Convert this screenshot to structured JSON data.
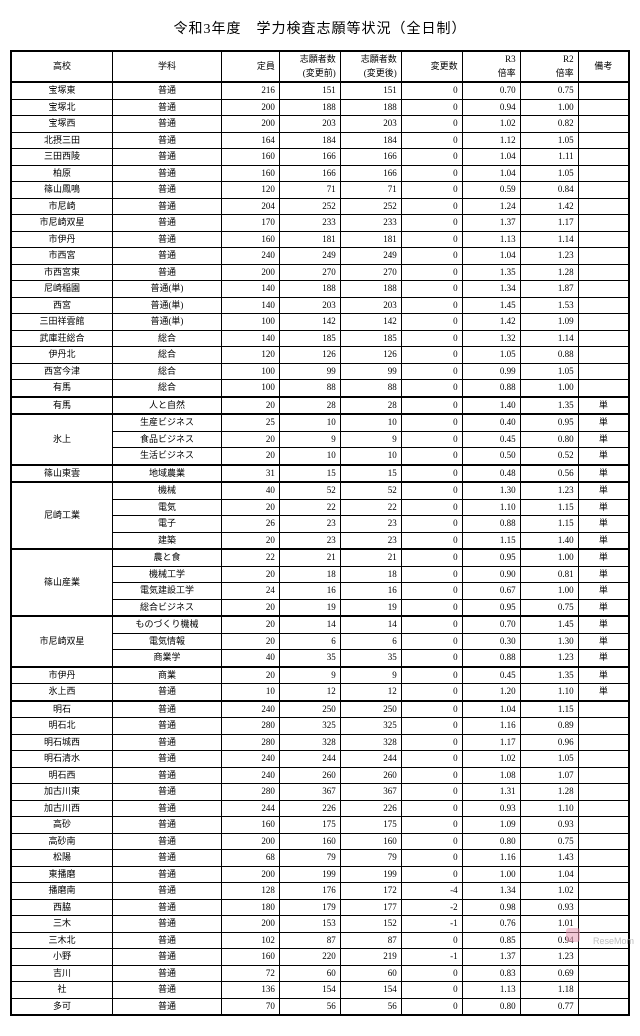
{
  "title": "令和3年度　学力検査志願等状況（全日制）",
  "columns": [
    "高校",
    "学科",
    "定員",
    "志願者数\n(変更前)",
    "志願者数\n(変更後)",
    "変更数",
    "R3\n倍率",
    "R2\n倍率",
    "備考"
  ],
  "groups": [
    {
      "rows": [
        [
          "宝塚東",
          "普通",
          216,
          151,
          151,
          0,
          "0.70",
          "0.75",
          ""
        ],
        [
          "宝塚北",
          "普通",
          200,
          188,
          188,
          0,
          "0.94",
          "1.00",
          ""
        ],
        [
          "宝塚西",
          "普通",
          200,
          203,
          203,
          0,
          "1.02",
          "0.82",
          ""
        ],
        [
          "北摂三田",
          "普通",
          164,
          184,
          184,
          0,
          "1.12",
          "1.05",
          ""
        ],
        [
          "三田西陵",
          "普通",
          160,
          166,
          166,
          0,
          "1.04",
          "1.11",
          ""
        ],
        [
          "柏原",
          "普通",
          160,
          166,
          166,
          0,
          "1.04",
          "1.05",
          ""
        ],
        [
          "篠山鳳鳴",
          "普通",
          120,
          71,
          71,
          0,
          "0.59",
          "0.84",
          ""
        ],
        [
          "市尼崎",
          "普通",
          204,
          252,
          252,
          0,
          "1.24",
          "1.42",
          ""
        ],
        [
          "市尼崎双星",
          "普通",
          170,
          233,
          233,
          0,
          "1.37",
          "1.17",
          ""
        ],
        [
          "市伊丹",
          "普通",
          160,
          181,
          181,
          0,
          "1.13",
          "1.14",
          ""
        ],
        [
          "市西宮",
          "普通",
          240,
          249,
          249,
          0,
          "1.04",
          "1.23",
          ""
        ],
        [
          "市西宮東",
          "普通",
          200,
          270,
          270,
          0,
          "1.35",
          "1.28",
          ""
        ],
        [
          "尼崎稲園",
          "普通(単)",
          140,
          188,
          188,
          0,
          "1.34",
          "1.87",
          ""
        ],
        [
          "西宮",
          "普通(単)",
          140,
          203,
          203,
          0,
          "1.45",
          "1.53",
          ""
        ],
        [
          "三田祥雲館",
          "普通(単)",
          100,
          142,
          142,
          0,
          "1.42",
          "1.09",
          ""
        ],
        [
          "武庫荘総合",
          "総合",
          140,
          185,
          185,
          0,
          "1.32",
          "1.14",
          ""
        ],
        [
          "伊丹北",
          "総合",
          120,
          126,
          126,
          0,
          "1.05",
          "0.88",
          ""
        ],
        [
          "西宮今津",
          "総合",
          100,
          99,
          99,
          0,
          "0.99",
          "1.05",
          ""
        ],
        [
          "有馬",
          "総合",
          100,
          88,
          88,
          0,
          "0.88",
          "1.00",
          ""
        ]
      ]
    },
    {
      "rows": [
        [
          "有馬",
          "人と自然",
          20,
          28,
          28,
          0,
          "1.40",
          "1.35",
          "単"
        ]
      ]
    },
    {
      "school": "氷上",
      "span": 3,
      "rows": [
        [
          "",
          "生産ビジネス",
          25,
          10,
          10,
          0,
          "0.40",
          "0.95",
          "単"
        ],
        [
          "",
          "食品ビジネス",
          20,
          9,
          9,
          0,
          "0.45",
          "0.80",
          "単"
        ],
        [
          "",
          "生活ビジネス",
          20,
          10,
          10,
          0,
          "0.50",
          "0.52",
          "単"
        ]
      ]
    },
    {
      "rows": [
        [
          "篠山東雲",
          "地域農業",
          31,
          15,
          15,
          0,
          "0.48",
          "0.56",
          "単"
        ]
      ]
    },
    {
      "school": "尼崎工業",
      "span": 4,
      "rows": [
        [
          "",
          "機械",
          40,
          52,
          52,
          0,
          "1.30",
          "1.23",
          "単"
        ],
        [
          "",
          "電気",
          20,
          22,
          22,
          0,
          "1.10",
          "1.15",
          "単"
        ],
        [
          "",
          "電子",
          26,
          23,
          23,
          0,
          "0.88",
          "1.15",
          "単"
        ],
        [
          "",
          "建築",
          20,
          23,
          23,
          0,
          "1.15",
          "1.40",
          "単"
        ]
      ]
    },
    {
      "school": "篠山産業",
      "span": 4,
      "rows": [
        [
          "",
          "農と食",
          22,
          21,
          21,
          0,
          "0.95",
          "1.00",
          "単"
        ],
        [
          "",
          "機械工学",
          20,
          18,
          18,
          0,
          "0.90",
          "0.81",
          "単"
        ],
        [
          "",
          "電気建設工学",
          24,
          16,
          16,
          0,
          "0.67",
          "1.00",
          "単"
        ],
        [
          "",
          "総合ビジネス",
          20,
          19,
          19,
          0,
          "0.95",
          "0.75",
          "単"
        ]
      ]
    },
    {
      "school": "市尼崎双星",
      "span": 3,
      "rows": [
        [
          "",
          "ものづくり機械",
          20,
          14,
          14,
          0,
          "0.70",
          "1.45",
          "単"
        ],
        [
          "",
          "電気情報",
          20,
          6,
          6,
          0,
          "0.30",
          "1.30",
          "単"
        ],
        [
          "",
          "商業学",
          40,
          35,
          35,
          0,
          "0.88",
          "1.23",
          "単"
        ]
      ]
    },
    {
      "rows": [
        [
          "市伊丹",
          "商業",
          20,
          9,
          9,
          0,
          "0.45",
          "1.35",
          "単"
        ],
        [
          "氷上西",
          "普通",
          10,
          12,
          12,
          0,
          "1.20",
          "1.10",
          "単"
        ]
      ]
    },
    {
      "rows": [
        [
          "明石",
          "普通",
          240,
          250,
          250,
          0,
          "1.04",
          "1.15",
          ""
        ],
        [
          "明石北",
          "普通",
          280,
          325,
          325,
          0,
          "1.16",
          "0.89",
          ""
        ],
        [
          "明石城西",
          "普通",
          280,
          328,
          328,
          0,
          "1.17",
          "0.96",
          ""
        ],
        [
          "明石清水",
          "普通",
          240,
          244,
          244,
          0,
          "1.02",
          "1.05",
          ""
        ],
        [
          "明石西",
          "普通",
          240,
          260,
          260,
          0,
          "1.08",
          "1.07",
          ""
        ],
        [
          "加古川東",
          "普通",
          280,
          367,
          367,
          0,
          "1.31",
          "1.28",
          ""
        ],
        [
          "加古川西",
          "普通",
          244,
          226,
          226,
          0,
          "0.93",
          "1.10",
          ""
        ],
        [
          "高砂",
          "普通",
          160,
          175,
          175,
          0,
          "1.09",
          "0.93",
          ""
        ],
        [
          "高砂南",
          "普通",
          200,
          160,
          160,
          0,
          "0.80",
          "0.75",
          ""
        ],
        [
          "松陽",
          "普通",
          68,
          79,
          79,
          0,
          "1.16",
          "1.43",
          ""
        ],
        [
          "東播磨",
          "普通",
          200,
          199,
          199,
          0,
          "1.00",
          "1.04",
          ""
        ],
        [
          "播磨南",
          "普通",
          128,
          176,
          172,
          -4,
          "1.34",
          "1.02",
          ""
        ],
        [
          "西脇",
          "普通",
          180,
          179,
          177,
          -2,
          "0.98",
          "0.93",
          ""
        ],
        [
          "三木",
          "普通",
          200,
          153,
          152,
          -1,
          "0.76",
          "1.01",
          ""
        ],
        [
          "三木北",
          "普通",
          102,
          87,
          87,
          0,
          "0.85",
          "0.94",
          ""
        ],
        [
          "小野",
          "普通",
          160,
          220,
          219,
          -1,
          "1.37",
          "1.23",
          ""
        ],
        [
          "吉川",
          "普通",
          72,
          60,
          60,
          0,
          "0.83",
          "0.69",
          ""
        ],
        [
          "社",
          "普通",
          136,
          154,
          154,
          0,
          "1.13",
          "1.18",
          ""
        ],
        [
          "多可",
          "普通",
          70,
          56,
          56,
          0,
          "0.80",
          "0.77",
          ""
        ]
      ]
    }
  ],
  "watermark": "ReseMom"
}
